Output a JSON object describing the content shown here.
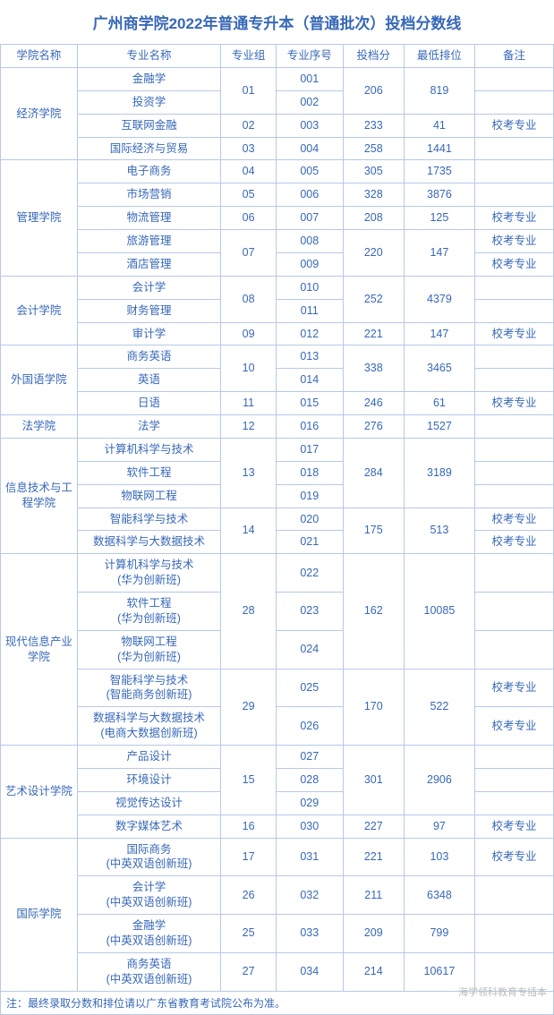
{
  "title": "广州商学院2022年普通专升本（普通批次）投档分数线",
  "headers": {
    "college": "学院名称",
    "major": "专业名称",
    "group": "专业组",
    "seq": "专业序号",
    "score": "投档分",
    "rank": "最低排位",
    "remark": "备注"
  },
  "footnote": "注：最终录取分数和排位请以广东省教育考试院公布为准。",
  "watermark": "海学领科教育专插本",
  "remark_label": "校考专业",
  "colleges": [
    {
      "name": "经济学院",
      "groups": [
        {
          "group": "01",
          "score": "206",
          "rank": "819",
          "majors": [
            {
              "name": "金融学",
              "seq": "001",
              "remark": ""
            },
            {
              "name": "投资学",
              "seq": "002",
              "remark": ""
            }
          ]
        },
        {
          "group": "02",
          "score": "233",
          "rank": "41",
          "majors": [
            {
              "name": "互联网金融",
              "seq": "003",
              "remark": "校考专业"
            }
          ]
        },
        {
          "group": "03",
          "score": "258",
          "rank": "1441",
          "majors": [
            {
              "name": "国际经济与贸易",
              "seq": "004",
              "remark": ""
            }
          ]
        }
      ]
    },
    {
      "name": "管理学院",
      "groups": [
        {
          "group": "04",
          "score": "305",
          "rank": "1735",
          "majors": [
            {
              "name": "电子商务",
              "seq": "005",
              "remark": ""
            }
          ]
        },
        {
          "group": "05",
          "score": "328",
          "rank": "3876",
          "majors": [
            {
              "name": "市场营销",
              "seq": "006",
              "remark": ""
            }
          ]
        },
        {
          "group": "06",
          "score": "208",
          "rank": "125",
          "majors": [
            {
              "name": "物流管理",
              "seq": "007",
              "remark": "校考专业"
            }
          ]
        },
        {
          "group": "07",
          "score": "220",
          "rank": "147",
          "majors": [
            {
              "name": "旅游管理",
              "seq": "008",
              "remark": "校考专业"
            },
            {
              "name": "酒店管理",
              "seq": "009",
              "remark": "校考专业"
            }
          ]
        }
      ]
    },
    {
      "name": "会计学院",
      "groups": [
        {
          "group": "08",
          "score": "252",
          "rank": "4379",
          "majors": [
            {
              "name": "会计学",
              "seq": "010",
              "remark": ""
            },
            {
              "name": "财务管理",
              "seq": "011",
              "remark": ""
            }
          ]
        },
        {
          "group": "09",
          "score": "221",
          "rank": "147",
          "majors": [
            {
              "name": "审计学",
              "seq": "012",
              "remark": "校考专业"
            }
          ]
        }
      ]
    },
    {
      "name": "外国语学院",
      "groups": [
        {
          "group": "10",
          "score": "338",
          "rank": "3465",
          "majors": [
            {
              "name": "商务英语",
              "seq": "013",
              "remark": ""
            },
            {
              "name": "英语",
              "seq": "014",
              "remark": ""
            }
          ]
        },
        {
          "group": "11",
          "score": "246",
          "rank": "61",
          "majors": [
            {
              "name": "日语",
              "seq": "015",
              "remark": "校考专业"
            }
          ]
        }
      ]
    },
    {
      "name": "法学院",
      "groups": [
        {
          "group": "12",
          "score": "276",
          "rank": "1527",
          "majors": [
            {
              "name": "法学",
              "seq": "016",
              "remark": ""
            }
          ]
        }
      ]
    },
    {
      "name": "信息技术与工程学院",
      "groups": [
        {
          "group": "13",
          "score": "284",
          "rank": "3189",
          "majors": [
            {
              "name": "计算机科学与技术",
              "seq": "017",
              "remark": ""
            },
            {
              "name": "软件工程",
              "seq": "018",
              "remark": ""
            },
            {
              "name": "物联网工程",
              "seq": "019",
              "remark": ""
            }
          ]
        },
        {
          "group": "14",
          "score": "175",
          "rank": "513",
          "majors": [
            {
              "name": "智能科学与技术",
              "seq": "020",
              "remark": "校考专业"
            },
            {
              "name": "数据科学与大数据技术",
              "seq": "021",
              "remark": "校考专业"
            }
          ]
        }
      ]
    },
    {
      "name": "现代信息产业学院",
      "groups": [
        {
          "group": "28",
          "score": "162",
          "rank": "10085",
          "majors": [
            {
              "name": "计算机科学与技术\n(华为创新班)",
              "seq": "022",
              "remark": ""
            },
            {
              "name": "软件工程\n(华为创新班)",
              "seq": "023",
              "remark": ""
            },
            {
              "name": "物联网工程\n(华为创新班)",
              "seq": "024",
              "remark": ""
            }
          ]
        },
        {
          "group": "29",
          "score": "170",
          "rank": "522",
          "majors": [
            {
              "name": "智能科学与技术\n(智能商务创新班)",
              "seq": "025",
              "remark": "校考专业"
            },
            {
              "name": "数据科学与大数据技术\n(电商大数据创新班)",
              "seq": "026",
              "remark": "校考专业"
            }
          ]
        }
      ]
    },
    {
      "name": "艺术设计学院",
      "groups": [
        {
          "group": "15",
          "score": "301",
          "rank": "2906",
          "majors": [
            {
              "name": "产品设计",
              "seq": "027",
              "remark": ""
            },
            {
              "name": "环境设计",
              "seq": "028",
              "remark": ""
            },
            {
              "name": "视觉传达设计",
              "seq": "029",
              "remark": ""
            }
          ]
        },
        {
          "group": "16",
          "score": "227",
          "rank": "97",
          "majors": [
            {
              "name": "数字媒体艺术",
              "seq": "030",
              "remark": "校考专业"
            }
          ]
        }
      ]
    },
    {
      "name": "国际学院",
      "groups": [
        {
          "group": "17",
          "score": "221",
          "rank": "103",
          "majors": [
            {
              "name": "国际商务\n(中英双语创新班)",
              "seq": "031",
              "remark": "校考专业"
            }
          ]
        },
        {
          "group": "26",
          "score": "211",
          "rank": "6348",
          "majors": [
            {
              "name": "会计学\n(中英双语创新班)",
              "seq": "032",
              "remark": ""
            }
          ]
        },
        {
          "group": "25",
          "score": "209",
          "rank": "799",
          "majors": [
            {
              "name": "金融学\n(中英双语创新班)",
              "seq": "033",
              "remark": ""
            }
          ]
        },
        {
          "group": "27",
          "score": "214",
          "rank": "10617",
          "majors": [
            {
              "name": "商务英语\n(中英双语创新班)",
              "seq": "034",
              "remark": ""
            }
          ]
        }
      ]
    }
  ]
}
